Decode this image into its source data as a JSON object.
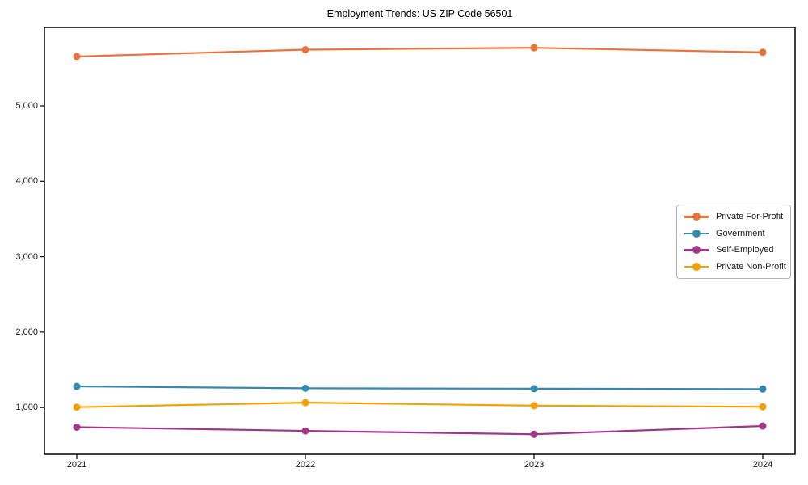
{
  "title": "Employment Trends: US ZIP Code 56501",
  "chart_data": {
    "type": "line",
    "title": "Employment Trends: US ZIP Code 56501",
    "x": [
      "2021",
      "2022",
      "2023",
      "2024"
    ],
    "series": [
      {
        "name": "Private For-Profit",
        "color": "#e8743b",
        "values": [
          5655,
          5745,
          5770,
          5710
        ]
      },
      {
        "name": "Government",
        "color": "#3389ae",
        "values": [
          1280,
          1255,
          1250,
          1245
        ]
      },
      {
        "name": "Self-Employed",
        "color": "#a23689",
        "values": [
          740,
          690,
          645,
          755
        ]
      },
      {
        "name": "Private Non-Profit",
        "color": "#f2a104",
        "values": [
          1005,
          1065,
          1025,
          1010
        ]
      }
    ],
    "ylim": [
      380,
      6040
    ],
    "yticks": [
      {
        "value": 1000,
        "label": "1,000"
      },
      {
        "value": 2000,
        "label": "2,000"
      },
      {
        "value": 3000,
        "label": "3,000"
      },
      {
        "value": 4000,
        "label": "4,000"
      },
      {
        "value": 5000,
        "label": "5,000"
      }
    ],
    "xlabel": "",
    "ylabel": "",
    "grid": false,
    "legend_position": "right"
  }
}
